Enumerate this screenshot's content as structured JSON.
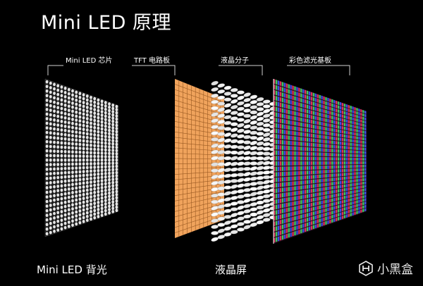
{
  "title": "Mini LED 原理",
  "layers": [
    {
      "label": "Mini LED 芯片"
    },
    {
      "label": "TFT 电路板"
    },
    {
      "label": "液晶分子"
    },
    {
      "label": "彩色滤光基板"
    }
  ],
  "bottom_labels": {
    "backlight": "Mini LED 背光",
    "lcd": "液晶屏"
  },
  "watermark": {
    "text": "小黑盒",
    "icon": "xiaoheihe-logo-icon"
  },
  "colors": {
    "background": "#000000",
    "led_dot": "#e6e6e6",
    "tft_panel": "#f0a35c",
    "tft_grid": "#9a5a22",
    "filter_red": "#e0305a",
    "filter_green": "#3cc860",
    "filter_blue": "#3a4ee8"
  }
}
